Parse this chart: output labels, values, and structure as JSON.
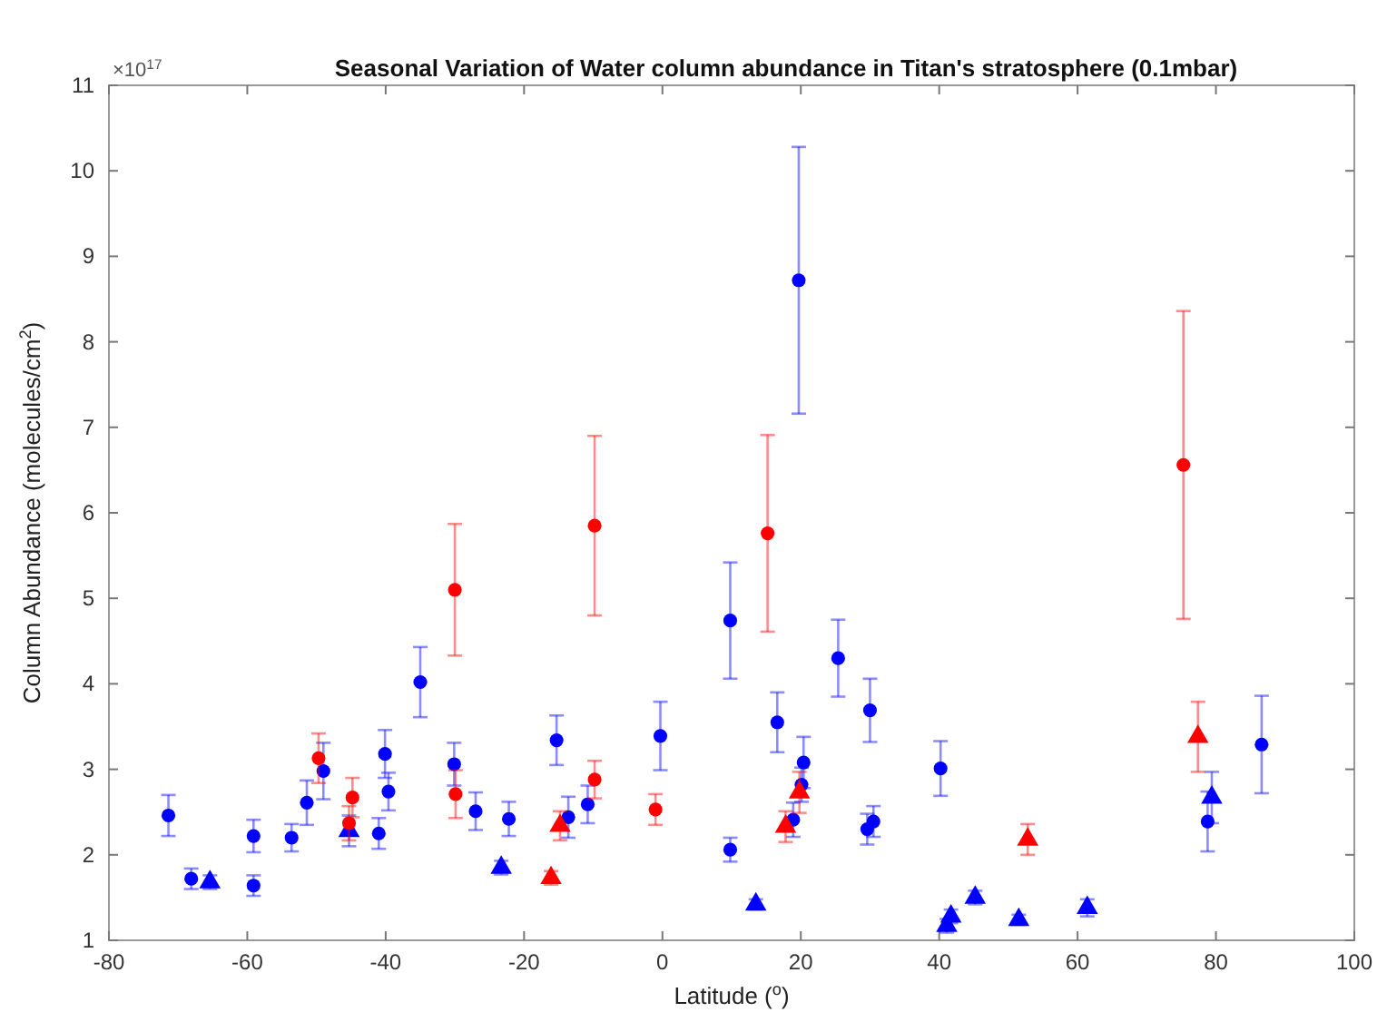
{
  "chart_data": {
    "type": "scatter",
    "title": "Seasonal Variation of Water column abundance in Titan's stratosphere (0.1mbar)",
    "xlabel": "Latitude ($^{o}$)",
    "ylabel": "Column Abundance (molecules/cm$^{2}$)",
    "annotations": [
      "×10$^{17}$"
    ],
    "xlim": [
      -80,
      100
    ],
    "xticks": [
      -80,
      -60,
      -40,
      -20,
      0,
      20,
      40,
      60,
      80,
      100
    ],
    "ylim": [
      1,
      11
    ],
    "yticks": [
      1,
      2,
      3,
      4,
      5,
      6,
      7,
      8,
      9,
      10,
      11
    ],
    "grid": false,
    "series": [
      {
        "color": "#0000ff",
        "marker": "circle",
        "x": [
          -71.4,
          -68.1,
          -59.1,
          -59.1,
          -53.6,
          -51.4,
          -49.0,
          -41.0,
          -40.1,
          -39.6,
          -35.0,
          -30.1,
          -27.0,
          -22.2,
          -15.3,
          -13.6,
          -10.8,
          -0.3,
          9.8,
          9.8,
          16.6,
          18.9,
          20.1,
          20.4,
          19.7,
          25.4,
          30.0,
          29.6,
          30.5,
          40.2,
          78.8,
          86.6
        ],
        "values": [
          2.46,
          1.72,
          2.22,
          1.64,
          2.2,
          2.61,
          2.98,
          2.25,
          3.18,
          2.74,
          4.02,
          3.06,
          2.51,
          2.42,
          3.34,
          2.44,
          2.59,
          3.39,
          4.74,
          2.06,
          3.55,
          2.41,
          2.82,
          3.08,
          8.72,
          4.3,
          3.69,
          2.3,
          2.39,
          3.01,
          2.39,
          3.29
        ],
        "errors": [
          0.24,
          0.12,
          0.19,
          0.12,
          0.16,
          0.26,
          0.33,
          0.18,
          0.28,
          0.22,
          0.41,
          0.25,
          0.22,
          0.2,
          0.29,
          0.24,
          0.22,
          0.4,
          0.68,
          0.14,
          0.35,
          0.2,
          0.2,
          0.3,
          1.56,
          0.45,
          0.37,
          0.18,
          0.18,
          0.32,
          0.35,
          0.57
        ]
      },
      {
        "color": "#0000ff",
        "marker": "triangle",
        "x": [
          -65.4,
          -45.3,
          -23.3,
          13.5,
          41.1,
          41.7,
          45.2,
          51.5,
          61.4,
          79.4
        ],
        "values": [
          1.68,
          2.28,
          1.85,
          1.42,
          1.17,
          1.28,
          1.5,
          1.24,
          1.38,
          2.67
        ],
        "errors": [
          0.08,
          0.18,
          0.08,
          0.06,
          0.08,
          0.08,
          0.08,
          0.06,
          0.1,
          0.3
        ]
      },
      {
        "color": "#ff0000",
        "marker": "circle",
        "x": [
          -49.7,
          -44.8,
          -45.3,
          -30.0,
          -29.9,
          -9.8,
          -9.8,
          -1.0,
          15.2,
          75.3
        ],
        "values": [
          3.13,
          2.67,
          2.37,
          5.1,
          2.71,
          2.88,
          5.85,
          2.53,
          5.76,
          6.56
        ],
        "errors": [
          0.29,
          0.23,
          0.2,
          0.77,
          0.28,
          0.22,
          1.05,
          0.18,
          1.15,
          1.8
        ]
      },
      {
        "color": "#ff0000",
        "marker": "triangle",
        "x": [
          -16.1,
          -14.8,
          17.8,
          19.8,
          52.8,
          77.4
        ],
        "values": [
          1.73,
          2.34,
          2.33,
          2.73,
          2.18,
          3.38
        ],
        "errors": [
          0.08,
          0.17,
          0.18,
          0.24,
          0.18,
          0.41
        ]
      }
    ]
  }
}
